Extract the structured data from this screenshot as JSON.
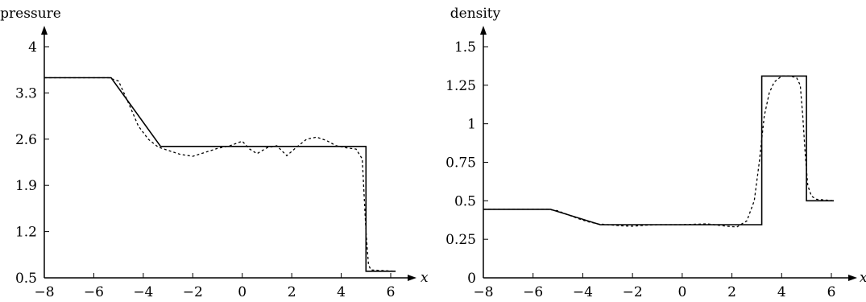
{
  "chart_data": [
    {
      "type": "line",
      "ylabel": "pressure",
      "xlabel": "x",
      "xlim": [
        -8,
        6.5
      ],
      "ylim": [
        0.5,
        4.4
      ],
      "xticks": [
        -8,
        -6,
        -4,
        -2,
        0,
        2,
        4,
        6
      ],
      "xtick_labels": [
        "−8",
        "−6",
        "−4",
        "−2",
        "0",
        "2",
        "4",
        "6"
      ],
      "yticks": [
        0.5,
        1.2,
        1.9,
        2.6,
        3.3,
        4
      ],
      "ytick_labels": [
        "0.5",
        "1.2",
        "1.9",
        "2.6",
        "3.3",
        "4"
      ],
      "grid": false,
      "series": [
        {
          "style": "solid",
          "x": [
            -8,
            -5.3,
            -3.3,
            5.0,
            5.0,
            6.2
          ],
          "y": [
            3.53,
            3.53,
            2.49,
            2.49,
            0.6,
            0.6
          ]
        },
        {
          "style": "dashed",
          "x": [
            -8,
            -5.4,
            -5.0,
            -4.6,
            -4.2,
            -3.8,
            -3.4,
            -3.0,
            -2.5,
            -2.0,
            -1.5,
            -1.0,
            -0.5,
            0.0,
            0.3,
            0.6,
            1.0,
            1.4,
            1.8,
            2.2,
            2.6,
            3.0,
            3.4,
            3.8,
            4.2,
            4.6,
            4.85,
            5.0,
            5.1,
            5.2,
            6.2
          ],
          "y": [
            3.53,
            3.53,
            3.48,
            3.15,
            2.8,
            2.6,
            2.48,
            2.43,
            2.37,
            2.34,
            2.4,
            2.46,
            2.5,
            2.57,
            2.45,
            2.38,
            2.47,
            2.5,
            2.35,
            2.48,
            2.6,
            2.63,
            2.58,
            2.5,
            2.47,
            2.45,
            2.3,
            1.2,
            0.7,
            0.62,
            0.6
          ]
        }
      ]
    },
    {
      "type": "line",
      "ylabel": "density",
      "xlabel": "x",
      "xlim": [
        -8,
        6.5
      ],
      "ylim": [
        0,
        1.6
      ],
      "xticks": [
        -8,
        -6,
        -4,
        -2,
        0,
        2,
        4,
        6
      ],
      "xtick_labels": [
        "−8",
        "−6",
        "−4",
        "−2",
        "0",
        "2",
        "4",
        "6"
      ],
      "yticks": [
        0,
        0.25,
        0.5,
        0.75,
        1,
        1.25,
        1.5
      ],
      "ytick_labels": [
        "0",
        "0.25",
        "0.5",
        "0.75",
        "1",
        "1.25",
        "1.5"
      ],
      "grid": false,
      "series": [
        {
          "style": "solid",
          "x": [
            -8,
            -5.3,
            -3.3,
            3.2,
            3.2,
            5.0,
            5.0,
            6.1
          ],
          "y": [
            0.445,
            0.445,
            0.345,
            0.345,
            1.31,
            1.31,
            0.5,
            0.5
          ]
        },
        {
          "style": "dashed",
          "x": [
            -8,
            -5.4,
            -5.0,
            -4.6,
            -4.2,
            -3.8,
            -3.4,
            -3.0,
            -2.5,
            -2.0,
            -1.5,
            -1.0,
            0.0,
            1.0,
            1.8,
            2.2,
            2.6,
            2.9,
            3.1,
            3.3,
            3.5,
            3.7,
            4.0,
            4.3,
            4.6,
            4.75,
            4.85,
            4.95,
            5.05,
            5.2,
            5.4,
            6.1
          ],
          "y": [
            0.445,
            0.445,
            0.435,
            0.41,
            0.385,
            0.365,
            0.35,
            0.345,
            0.338,
            0.335,
            0.342,
            0.345,
            0.345,
            0.35,
            0.335,
            0.33,
            0.37,
            0.5,
            0.75,
            1.05,
            1.2,
            1.27,
            1.31,
            1.31,
            1.3,
            1.25,
            1.05,
            0.8,
            0.6,
            0.53,
            0.51,
            0.5
          ]
        }
      ]
    }
  ]
}
